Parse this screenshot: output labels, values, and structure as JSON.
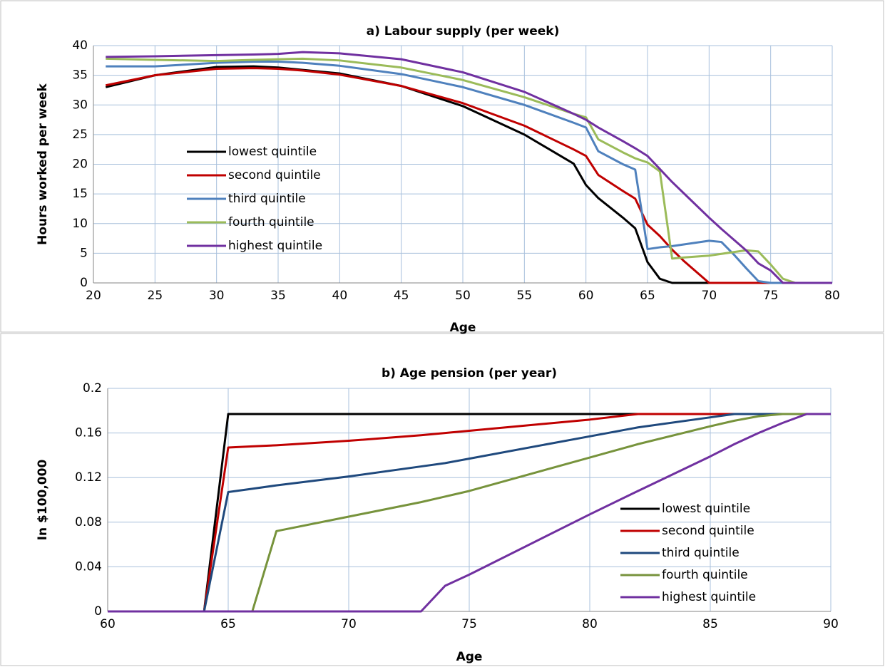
{
  "chart_data": [
    {
      "type": "line",
      "title": "a) Labour supply (per week)",
      "x_label": "Age",
      "y_label": "Hours worked per week",
      "x": [
        21,
        25,
        30,
        33,
        35,
        37,
        40,
        45,
        50,
        55,
        59,
        60,
        61,
        63,
        64,
        65,
        66,
        67,
        68,
        70,
        71,
        72,
        73,
        74,
        75,
        76,
        77,
        80
      ],
      "series": [
        {
          "name": "lowest quintile",
          "color": "#000000",
          "values": [
            33,
            35,
            36.4,
            36.5,
            36.3,
            35.9,
            35.3,
            33.2,
            29.8,
            25,
            20.1,
            16.5,
            14.3,
            11,
            9.2,
            3.5,
            0.7,
            0,
            0,
            0,
            0,
            0,
            0,
            0,
            0,
            0,
            0,
            0
          ]
        },
        {
          "name": "second quintile",
          "color": "#c00000",
          "values": [
            33.3,
            35,
            36.1,
            36.2,
            36.1,
            35.8,
            35.1,
            33.2,
            30.3,
            26.5,
            22.5,
            21.4,
            18.2,
            15.5,
            14.2,
            9.8,
            7.9,
            5.6,
            3.6,
            0,
            0,
            0,
            0,
            0,
            0,
            0,
            0,
            0
          ]
        },
        {
          "name": "third quintile",
          "color": "#4f81bd",
          "values": [
            36.5,
            36.5,
            37.1,
            37.3,
            37.3,
            37.1,
            36.6,
            35.2,
            33,
            30,
            27,
            26.2,
            22.2,
            20,
            19.1,
            5.7,
            6,
            6.2,
            6.5,
            7.1,
            6.9,
            4.8,
            2.5,
            0.3,
            0,
            0,
            0,
            0
          ]
        },
        {
          "name": "fourth quintile",
          "color": "#9bbb59",
          "values": [
            37.8,
            37.6,
            37.4,
            37.6,
            37.7,
            37.8,
            37.5,
            36.3,
            34.2,
            31.3,
            28.5,
            27.9,
            24.2,
            22,
            21,
            20.3,
            18.8,
            4.1,
            4.3,
            4.6,
            4.9,
            5.2,
            5.5,
            5.3,
            3.1,
            0.7,
            0,
            0
          ]
        },
        {
          "name": "highest quintile",
          "color": "#7030a0",
          "values": [
            38.1,
            38.2,
            38.4,
            38.5,
            38.6,
            38.9,
            38.7,
            37.7,
            35.5,
            32.2,
            28.5,
            27.5,
            26.2,
            23.9,
            22.7,
            21.4,
            19.2,
            17,
            15,
            11,
            9.1,
            7.3,
            5.5,
            3.3,
            2.1,
            0,
            0,
            0
          ]
        }
      ],
      "xlim": [
        20,
        80
      ],
      "xticks": [
        20,
        25,
        30,
        35,
        40,
        45,
        50,
        55,
        60,
        65,
        70,
        75,
        80
      ],
      "ylim": [
        0,
        40
      ],
      "yticks": [
        0,
        5,
        10,
        15,
        20,
        25,
        30,
        35,
        40
      ],
      "grid": true,
      "legend": "left"
    },
    {
      "type": "line",
      "title": "b) Age pension (per year)",
      "x_label": "Age",
      "y_label": "In $100,000",
      "x": [
        60,
        64,
        65,
        66,
        67,
        70,
        73,
        74,
        75,
        80,
        82,
        85,
        86,
        87,
        88,
        89,
        90
      ],
      "series": [
        {
          "name": "lowest quintile",
          "color": "#000000",
          "values": [
            0,
            0,
            0.177,
            0.177,
            0.177,
            0.177,
            0.177,
            0.177,
            0.177,
            0.177,
            0.177,
            0.177,
            0.177,
            0.177,
            0.177,
            0.177,
            0.177
          ]
        },
        {
          "name": "second quintile",
          "color": "#c00000",
          "values": [
            0,
            0,
            0.147,
            0.148,
            0.149,
            0.153,
            0.158,
            0.16,
            0.162,
            0.172,
            0.177,
            0.177,
            0.177,
            0.177,
            0.177,
            0.177,
            0.177
          ]
        },
        {
          "name": "third quintile",
          "color": "#1f497d",
          "values": [
            0,
            0,
            0.107,
            0.11,
            0.113,
            0.121,
            0.13,
            0.133,
            0.137,
            0.157,
            0.165,
            0.174,
            0.177,
            0.177,
            0.177,
            0.177,
            0.177
          ]
        },
        {
          "name": "fourth quintile",
          "color": "#77933c",
          "values": [
            0,
            0,
            0,
            0,
            0.072,
            0.085,
            0.098,
            0.103,
            0.108,
            0.138,
            0.15,
            0.166,
            0.171,
            0.175,
            0.177,
            0.177,
            0.177
          ]
        },
        {
          "name": "highest quintile",
          "color": "#7030a0",
          "values": [
            0,
            0,
            0,
            0,
            0,
            0,
            0,
            0.023,
            0.033,
            0.087,
            0.108,
            0.139,
            0.15,
            0.16,
            0.169,
            0.177,
            0.177
          ]
        }
      ],
      "xlim": [
        60,
        90
      ],
      "xticks": [
        60,
        65,
        70,
        75,
        80,
        85,
        90
      ],
      "ylim": [
        0,
        0.2
      ],
      "yticks": [
        0,
        0.04,
        0.08,
        0.12,
        0.16,
        0.2
      ],
      "grid": true,
      "legend": "right"
    }
  ]
}
